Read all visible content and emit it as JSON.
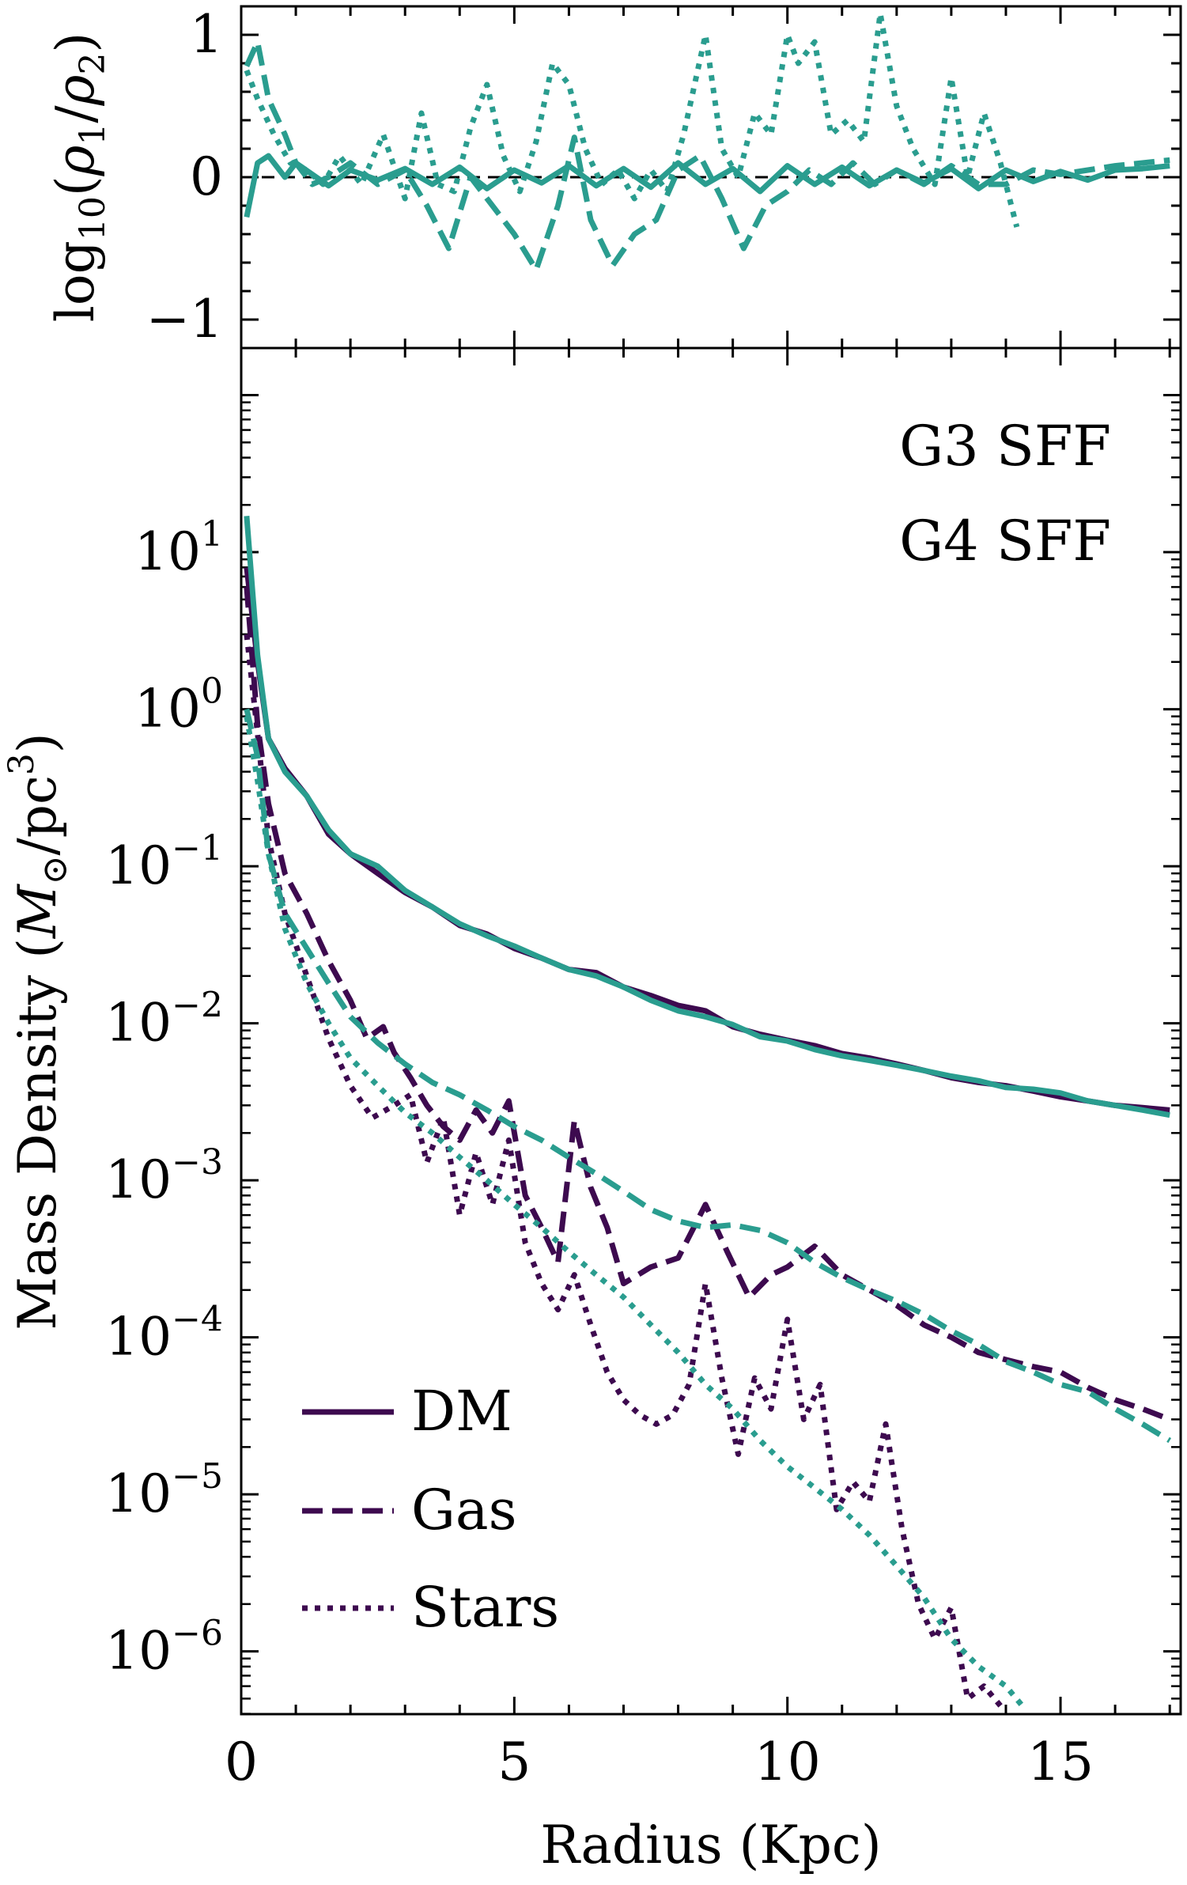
{
  "chart_data": [
    {
      "type": "line",
      "panel": "top",
      "ylabel": "log10(ρ1/ρ2)",
      "ylabel_parts": {
        "base": "log",
        "sub": "10",
        "open": "(",
        "rho": "ρ",
        "n1": "1",
        "slash": "/",
        "n2": "2",
        "close": ")"
      },
      "xlim": [
        0,
        17.2
      ],
      "ylim": [
        -1.2,
        1.2
      ],
      "yticks": [
        -1,
        0,
        1
      ],
      "ytick_labels": [
        "−1",
        "0",
        "1"
      ],
      "reference_line": 0,
      "series": [
        {
          "name": "DM",
          "color": "#2a9d8f",
          "dash": "solid",
          "x": [
            0.1,
            0.3,
            0.5,
            0.8,
            1.0,
            1.3,
            1.6,
            2.0,
            2.5,
            3.0,
            3.5,
            4.0,
            4.5,
            5.0,
            5.5,
            6.0,
            6.5,
            7.0,
            7.5,
            8.0,
            8.5,
            9.0,
            9.5,
            10.0,
            10.5,
            11.0,
            11.5,
            12.0,
            12.5,
            13.0,
            13.5,
            14.0,
            14.5,
            15.0,
            15.5,
            16.0,
            16.5,
            17.0
          ],
          "y": [
            -0.28,
            0.1,
            0.15,
            0.0,
            0.1,
            0.02,
            -0.06,
            0.05,
            -0.02,
            0.06,
            -0.05,
            0.07,
            -0.08,
            0.05,
            -0.04,
            0.08,
            -0.06,
            0.06,
            -0.07,
            0.1,
            -0.05,
            0.06,
            -0.1,
            0.08,
            -0.05,
            0.07,
            -0.06,
            0.05,
            -0.04,
            0.06,
            -0.08,
            0.05,
            -0.03,
            0.04,
            -0.02,
            0.05,
            0.06,
            0.08
          ]
        },
        {
          "name": "Gas",
          "color": "#2a9d8f",
          "dash": "dashed",
          "x": [
            0.1,
            0.3,
            0.5,
            0.8,
            1.0,
            1.3,
            1.6,
            2.0,
            2.5,
            3.0,
            3.4,
            3.8,
            4.2,
            4.6,
            5.0,
            5.4,
            5.8,
            6.1,
            6.4,
            6.8,
            7.2,
            7.6,
            8.0,
            8.4,
            8.8,
            9.2,
            9.6,
            10.0,
            10.4,
            10.8,
            11.2,
            11.6,
            12.0,
            12.5,
            13.0,
            13.5,
            14.0,
            14.5,
            15.0,
            15.5,
            16.0,
            16.5,
            17.0
          ],
          "y": [
            0.78,
            0.95,
            0.55,
            0.3,
            0.1,
            -0.05,
            0.0,
            0.1,
            -0.05,
            0.05,
            -0.2,
            -0.5,
            0.0,
            -0.2,
            -0.4,
            -0.65,
            -0.2,
            0.28,
            -0.3,
            -0.62,
            -0.4,
            -0.3,
            0.05,
            0.15,
            -0.15,
            -0.5,
            -0.2,
            -0.1,
            0.05,
            -0.05,
            0.1,
            -0.05,
            0.05,
            -0.05,
            0.08,
            -0.05,
            -0.05,
            0.05,
            0.02,
            0.05,
            0.08,
            0.1,
            0.12
          ]
        },
        {
          "name": "Stars",
          "color": "#2a9d8f",
          "dash": "dotted",
          "x": [
            0.1,
            0.3,
            0.6,
            0.9,
            1.2,
            1.5,
            1.8,
            2.2,
            2.6,
            3.0,
            3.3,
            3.6,
            3.9,
            4.2,
            4.5,
            4.8,
            5.1,
            5.4,
            5.7,
            6.0,
            6.3,
            6.6,
            6.9,
            7.2,
            7.5,
            7.8,
            8.1,
            8.5,
            8.8,
            9.1,
            9.4,
            9.7,
            10.0,
            10.2,
            10.5,
            10.8,
            11.1,
            11.4,
            11.7,
            12.0,
            12.3,
            12.7,
            13.0,
            13.3,
            13.6,
            13.9,
            14.2
          ],
          "y": [
            0.75,
            0.55,
            0.3,
            0.1,
            0.05,
            -0.05,
            0.15,
            -0.05,
            0.3,
            -0.15,
            0.45,
            -0.05,
            -0.1,
            0.35,
            0.65,
            0.15,
            -0.1,
            0.25,
            0.8,
            0.65,
            0.2,
            -0.05,
            0.05,
            -0.15,
            0.05,
            -0.1,
            0.3,
            1.0,
            0.2,
            0.0,
            0.45,
            0.3,
            1.0,
            0.8,
            0.95,
            0.3,
            0.4,
            0.25,
            1.15,
            0.5,
            0.2,
            -0.05,
            0.7,
            0.0,
            0.45,
            0.1,
            -0.35
          ]
        }
      ]
    },
    {
      "type": "line",
      "panel": "bottom",
      "yscale": "log",
      "title": "",
      "xlabel": "Radius (Kpc)",
      "ylabel": "Mass Density (M⊙/pc³)",
      "ylabel_parts": {
        "main": "Mass Density (",
        "m": "M",
        "sun": "⊙",
        "unit": "/pc",
        "exp": "3",
        "close": ")"
      },
      "xlim": [
        0,
        17.2
      ],
      "ylim_exponent": [
        -6.4,
        2.3
      ],
      "xticks": [
        0,
        5,
        10,
        15
      ],
      "xtick_labels": [
        "0",
        "5",
        "10",
        "15"
      ],
      "yticks_exponent": [
        1,
        0,
        -1,
        -2,
        -3,
        -4,
        -5,
        -6
      ],
      "ytick_labels": [
        {
          "base": "10",
          "exp": "1"
        },
        {
          "base": "10",
          "exp": "0"
        },
        {
          "base": "10",
          "exp": "−1"
        },
        {
          "base": "10",
          "exp": "−2"
        },
        {
          "base": "10",
          "exp": "−3"
        },
        {
          "base": "10",
          "exp": "−4"
        },
        {
          "base": "10",
          "exp": "−5"
        },
        {
          "base": "10",
          "exp": "−6"
        }
      ],
      "annotations": [
        {
          "text": "G3 SFF",
          "color": "#3d0a4f"
        },
        {
          "text": "G4 SFF",
          "color": "#2a9d8f"
        }
      ],
      "legend": {
        "placement": "lower-left",
        "entries": [
          {
            "label": "DM",
            "dash": "solid",
            "color": "#3d0a4f"
          },
          {
            "label": "Gas",
            "dash": "dashed",
            "color": "#3d0a4f"
          },
          {
            "label": "Stars",
            "dash": "dotted",
            "color": "#3d0a4f"
          }
        ]
      },
      "series": [
        {
          "name": "G3 SFF DM",
          "color": "#3d0a4f",
          "dash": "solid",
          "width": 7,
          "x": [
            0.1,
            0.3,
            0.5,
            0.8,
            1.2,
            1.6,
            2.0,
            2.5,
            3.0,
            3.5,
            4.0,
            4.5,
            5.0,
            5.5,
            6.0,
            6.5,
            7.0,
            7.5,
            8.0,
            8.5,
            9.0,
            9.5,
            10.0,
            10.5,
            11.0,
            11.5,
            12.0,
            12.5,
            13.0,
            13.5,
            14.0,
            14.5,
            15.0,
            15.5,
            16.0,
            16.5,
            17.0
          ],
          "y": [
            8,
            2.0,
            0.65,
            0.42,
            0.28,
            0.16,
            0.12,
            0.09,
            0.068,
            0.055,
            0.042,
            0.037,
            0.03,
            0.026,
            0.022,
            0.021,
            0.017,
            0.015,
            0.013,
            0.012,
            0.0095,
            0.0085,
            0.0078,
            0.0072,
            0.0064,
            0.006,
            0.0055,
            0.005,
            0.0045,
            0.0042,
            0.004,
            0.0037,
            0.0034,
            0.0032,
            0.003,
            0.0029,
            0.0028
          ]
        },
        {
          "name": "G3 SFF Gas",
          "color": "#3d0a4f",
          "dash": "dashed",
          "width": 7,
          "x": [
            0.1,
            0.3,
            0.5,
            0.8,
            1.2,
            1.6,
            2.0,
            2.3,
            2.6,
            2.8,
            3.1,
            3.4,
            3.7,
            4.0,
            4.3,
            4.6,
            4.9,
            5.2,
            5.5,
            5.8,
            6.1,
            6.4,
            6.7,
            7.0,
            7.5,
            8.0,
            8.5,
            8.9,
            9.3,
            9.7,
            10.0,
            10.5,
            11.0,
            11.5,
            12.0,
            12.5,
            13.0,
            13.5,
            14.0,
            14.5,
            15.0,
            15.5,
            16.0,
            16.5,
            17.0
          ],
          "y": [
            6,
            0.8,
            0.25,
            0.09,
            0.05,
            0.025,
            0.014,
            0.008,
            0.0095,
            0.0065,
            0.0045,
            0.003,
            0.0022,
            0.0018,
            0.0028,
            0.002,
            0.0032,
            0.0008,
            0.0005,
            0.0003,
            0.0024,
            0.0009,
            0.0005,
            0.00022,
            0.00028,
            0.00032,
            0.0007,
            0.00035,
            0.00018,
            0.00025,
            0.00028,
            0.00038,
            0.00025,
            0.0002,
            0.00016,
            0.00012,
            0.0001,
            8e-05,
            7.2e-05,
            6.5e-05,
            6e-05,
            4.8e-05,
            4e-05,
            3.5e-05,
            3e-05
          ]
        },
        {
          "name": "G3 SFF Stars",
          "color": "#3d0a4f",
          "dash": "dotted",
          "width": 7,
          "x": [
            0.1,
            0.3,
            0.5,
            0.8,
            1.2,
            1.6,
            2.0,
            2.4,
            2.8,
            3.1,
            3.4,
            3.7,
            4.0,
            4.3,
            4.6,
            4.9,
            5.2,
            5.5,
            5.8,
            6.1,
            6.4,
            6.7,
            7.0,
            7.3,
            7.6,
            7.9,
            8.2,
            8.5,
            8.8,
            9.1,
            9.4,
            9.7,
            10.0,
            10.3,
            10.6,
            10.9,
            11.2,
            11.5,
            11.8,
            12.1,
            12.4,
            12.7,
            13.0,
            13.3,
            13.6,
            13.9
          ],
          "y": [
            3,
            0.7,
            0.15,
            0.05,
            0.02,
            0.008,
            0.004,
            0.0025,
            0.003,
            0.0035,
            0.0013,
            0.0025,
            0.0006,
            0.0015,
            0.0007,
            0.0018,
            0.0004,
            0.00022,
            0.00015,
            0.00025,
            0.00012,
            6e-05,
            4e-05,
            3.2e-05,
            2.8e-05,
            3.2e-05,
            5e-05,
            0.00022,
            5.5e-05,
            1.8e-05,
            5.5e-05,
            3.5e-05,
            0.00013,
            3e-05,
            5e-05,
            8e-06,
            1.2e-05,
            9e-06,
            2.8e-05,
            6e-06,
            2e-06,
            1.2e-06,
            1.9e-06,
            5e-07,
            6e-07,
            4.5e-07
          ]
        },
        {
          "name": "G4 SFF DM",
          "color": "#2a9d8f",
          "dash": "solid",
          "width": 7,
          "x": [
            0.1,
            0.3,
            0.5,
            0.8,
            1.2,
            1.6,
            2.0,
            2.5,
            3.0,
            3.5,
            4.0,
            4.5,
            5.0,
            5.5,
            6.0,
            6.5,
            7.0,
            7.5,
            8.0,
            8.5,
            9.0,
            9.5,
            10.0,
            10.5,
            11.0,
            11.5,
            12.0,
            12.5,
            13.0,
            13.5,
            14.0,
            14.5,
            15.0,
            15.5,
            16.0,
            16.5,
            17.0
          ],
          "y": [
            17,
            2.2,
            0.65,
            0.4,
            0.28,
            0.17,
            0.12,
            0.1,
            0.07,
            0.055,
            0.043,
            0.036,
            0.031,
            0.026,
            0.022,
            0.02,
            0.017,
            0.014,
            0.012,
            0.011,
            0.0098,
            0.0082,
            0.0077,
            0.0068,
            0.0062,
            0.0058,
            0.0054,
            0.005,
            0.0046,
            0.0043,
            0.0039,
            0.0038,
            0.0036,
            0.0032,
            0.003,
            0.0028,
            0.0026
          ]
        },
        {
          "name": "G4 SFF Gas",
          "color": "#2a9d8f",
          "dash": "dashed",
          "width": 7,
          "x": [
            0.1,
            0.3,
            0.5,
            0.8,
            1.2,
            1.6,
            2.0,
            2.5,
            3.0,
            3.5,
            4.0,
            4.5,
            5.0,
            5.5,
            6.0,
            6.5,
            7.0,
            7.5,
            8.0,
            8.5,
            9.0,
            9.5,
            10.0,
            10.5,
            11.0,
            11.5,
            12.0,
            12.5,
            13.0,
            13.5,
            14.0,
            14.5,
            15.0,
            15.5,
            16.0,
            16.5,
            17.0
          ],
          "y": [
            1.0,
            0.5,
            0.12,
            0.05,
            0.03,
            0.018,
            0.011,
            0.0075,
            0.0055,
            0.0042,
            0.0035,
            0.0028,
            0.0022,
            0.0018,
            0.0014,
            0.0011,
            0.00085,
            0.00065,
            0.00055,
            0.0005,
            0.00052,
            0.00048,
            0.0004,
            0.0003,
            0.00024,
            0.0002,
            0.00017,
            0.00014,
            0.00011,
            9e-05,
            7e-05,
            6e-05,
            5e-05,
            4.5e-05,
            3.5e-05,
            2.8e-05,
            2.2e-05
          ]
        },
        {
          "name": "G4 SFF Stars",
          "color": "#2a9d8f",
          "dash": "dotted",
          "width": 7,
          "x": [
            0.1,
            0.3,
            0.5,
            0.8,
            1.2,
            1.6,
            2.0,
            2.5,
            3.0,
            3.5,
            4.0,
            4.5,
            5.0,
            5.5,
            6.0,
            6.5,
            7.0,
            7.5,
            8.0,
            8.5,
            9.0,
            9.5,
            10.0,
            10.5,
            11.0,
            11.5,
            12.0,
            12.5,
            13.0,
            13.5,
            14.0,
            14.3
          ],
          "y": [
            0.9,
            0.35,
            0.12,
            0.04,
            0.018,
            0.01,
            0.006,
            0.004,
            0.0027,
            0.002,
            0.0014,
            0.001,
            0.0007,
            0.0005,
            0.00035,
            0.00025,
            0.00018,
            0.00012,
            8e-05,
            5e-05,
            3.5e-05,
            2.2e-05,
            1.5e-05,
            1.1e-05,
            8e-06,
            5.5e-06,
            3.5e-06,
            2.2e-06,
            1.2e-06,
            8e-07,
            6e-07,
            4.5e-07
          ]
        }
      ]
    }
  ]
}
